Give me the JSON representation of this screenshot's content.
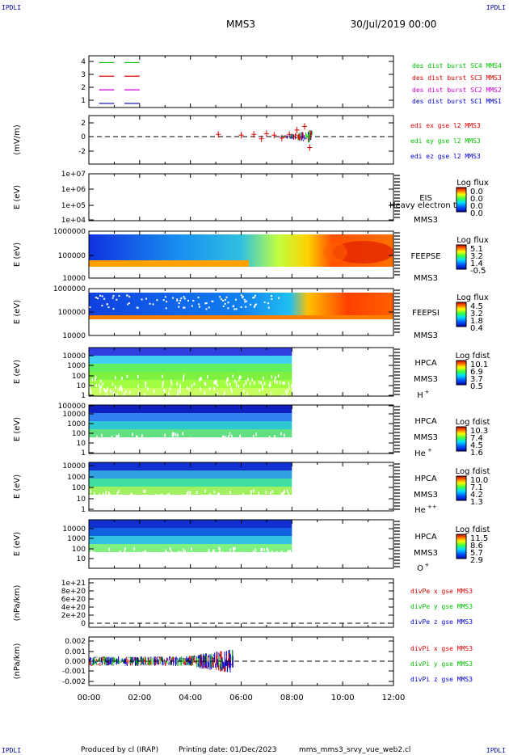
{
  "corner_mark": "IPDLI",
  "header": {
    "mission": "MMS3",
    "date": "30/Jul/2019 00:00"
  },
  "footer": {
    "produced_by": "Produced by cl (IRAP)",
    "printing_date": "Printing date: 01/Dec/2023",
    "script": "mms_mms3_srvy_vue_web2.cl"
  },
  "colors": {
    "red": "#e00000",
    "green": "#00c000",
    "blue": "#0000d0",
    "magenta": "#d000d0",
    "axis": "#000000"
  },
  "chart_data": [
    {
      "id": "p1",
      "type": "line",
      "yticks": [
        "4",
        "3",
        "2",
        "1"
      ],
      "ylim": [
        0.7,
        4.5
      ],
      "series": [
        {
          "name": "des dist burst SC1 MMS1",
          "color": "#0000d0",
          "y": 1,
          "segments": [
            [
              0.4,
              1.0
            ],
            [
              1.4,
              2.0
            ]
          ]
        },
        {
          "name": "des dist burst SC2 MMS2",
          "color": "#d000d0",
          "y": 2,
          "segments": [
            [
              0.4,
              1.0
            ],
            [
              1.4,
              2.0
            ]
          ]
        },
        {
          "name": "des dist burst SC3 MMS3",
          "color": "#e00000",
          "y": 3,
          "segments": [
            [
              0.4,
              1.0
            ],
            [
              1.4,
              2.0
            ]
          ]
        },
        {
          "name": "des dist burst SC4 MMS4",
          "color": "#00c000",
          "y": 4,
          "segments": [
            [
              0.4,
              1.0
            ],
            [
              1.4,
              2.0
            ]
          ]
        }
      ]
    },
    {
      "id": "p2",
      "type": "line",
      "ylabel": "(mV/m)",
      "yticks": [
        "2",
        "0",
        "-2"
      ],
      "ylim": [
        -3,
        2.5
      ],
      "zero_line": true,
      "series": [
        {
          "name": "edi ex gse l2 MMS3",
          "color": "#e00000"
        },
        {
          "name": "edi ey gse l2 MMS3",
          "color": "#00c000"
        },
        {
          "name": "edi ez gse l2 MMS3",
          "color": "#0000d0"
        }
      ],
      "points": [
        [
          5.1,
          0.3
        ],
        [
          6.0,
          0.2
        ],
        [
          6.5,
          0.3
        ],
        [
          6.8,
          -0.3
        ],
        [
          7.0,
          0.4
        ],
        [
          7.3,
          0.2
        ],
        [
          7.6,
          -0.2
        ],
        [
          7.9,
          0.3
        ],
        [
          8.2,
          0.9
        ],
        [
          8.5,
          1.4
        ],
        [
          8.7,
          -1.5
        ]
      ]
    },
    {
      "id": "p3",
      "type": "heatmap",
      "ylabel": "E (eV)",
      "yticks": [
        "1e+07",
        "1e+06",
        "1e+05",
        "1e+04"
      ],
      "instrument": "EIS",
      "instrument2": "Heavy electron to",
      "sc": "MMS3",
      "cbar_title": "Log flux",
      "cbar_ticks": [
        "0.0",
        "0.0",
        "0.0",
        "0.0"
      ],
      "data": "none"
    },
    {
      "id": "p4",
      "type": "heatmap",
      "ylabel": "E (eV)",
      "yticks": [
        "1000000",
        "100000",
        "10000"
      ],
      "instrument": "FEEPSE",
      "sc": "MMS3",
      "cbar_title": "Log flux",
      "cbar_ticks": [
        "5.1",
        "3.2",
        "1.4",
        "-0.5"
      ]
    },
    {
      "id": "p5",
      "type": "heatmap",
      "ylabel": "E (eV)",
      "yticks": [
        "1000000",
        "100000",
        "10000"
      ],
      "instrument": "FEEPSI",
      "sc": "MMS3",
      "cbar_title": "Log flux",
      "cbar_ticks": [
        "4.5",
        "3.2",
        "1.8",
        "0.4"
      ]
    },
    {
      "id": "p6",
      "type": "heatmap",
      "ylabel": "E (eV)",
      "yticks": [
        "10000",
        "1000",
        "100",
        "10",
        "1"
      ],
      "instrument": "HPCA",
      "sc": "MMS3",
      "species": "H",
      "species_sup": "+",
      "cbar_title": "Log fdist",
      "cbar_ticks": [
        "10.1",
        "6.9",
        "3.7",
        "0.5"
      ],
      "data_end_hour": 8.0
    },
    {
      "id": "p7",
      "type": "heatmap",
      "ylabel": "E (eV)",
      "yticks": [
        "100000",
        "10000",
        "1000",
        "100",
        "10",
        "1"
      ],
      "instrument": "HPCA",
      "sc": "MMS3",
      "species": "He",
      "species_sup": "+",
      "cbar_title": "Log fdist",
      "cbar_ticks": [
        "10.3",
        "7.4",
        "4.5",
        "1.6"
      ],
      "data_end_hour": 8.0
    },
    {
      "id": "p8",
      "type": "heatmap",
      "ylabel": "E (eV)",
      "yticks": [
        "10000",
        "1000",
        "100",
        "10",
        "1"
      ],
      "instrument": "HPCA",
      "sc": "MMS3",
      "species": "He",
      "species_sup": "++",
      "cbar_title": "Log fdist",
      "cbar_ticks": [
        "10.0",
        "7.1",
        "4.2",
        "1.3"
      ],
      "data_end_hour": 8.0
    },
    {
      "id": "p9",
      "type": "heatmap",
      "ylabel": "E (eV)",
      "yticks": [
        "10000",
        "1000",
        "100",
        "10"
      ],
      "instrument": "HPCA",
      "sc": "MMS3",
      "species": "O",
      "species_sup": "+",
      "cbar_title": "Log fdist",
      "cbar_ticks": [
        "11.5",
        "8.6",
        "5.7",
        "2.9"
      ],
      "data_end_hour": 8.0
    },
    {
      "id": "p10",
      "type": "line",
      "ylabel": "(nPa/km)",
      "yticks": [
        "1e+21",
        "8e+20",
        "6e+20",
        "4e+20",
        "2e+20",
        "0"
      ],
      "ylim": [
        0,
        1.1e+21
      ],
      "zero_line": true,
      "series": [
        {
          "name": "divPe x gse MMS3",
          "color": "#e00000"
        },
        {
          "name": "divPe y gse MMS3",
          "color": "#00c000"
        },
        {
          "name": "divPe z gse MMS3",
          "color": "#0000d0"
        }
      ]
    },
    {
      "id": "p11",
      "type": "line",
      "ylabel": "(nPa/km)",
      "yticks": [
        "0.002",
        "0.001",
        "0.000",
        "-0.001",
        "-0.002"
      ],
      "ylim": [
        -0.0025,
        0.0025
      ],
      "zero_line": true,
      "data_end_hour": 5.7,
      "series": [
        {
          "name": "divPi x gse MMS3",
          "color": "#e00000"
        },
        {
          "name": "divPi y gse MMS3",
          "color": "#00c000"
        },
        {
          "name": "divPi z gse MMS3",
          "color": "#0000d0"
        }
      ]
    }
  ],
  "x_axis": {
    "type": "time",
    "xlim_hours": [
      0,
      12
    ],
    "tick_labels": [
      "00:00",
      "02:00",
      "04:00",
      "06:00",
      "08:00",
      "10:00",
      "12:00"
    ]
  }
}
